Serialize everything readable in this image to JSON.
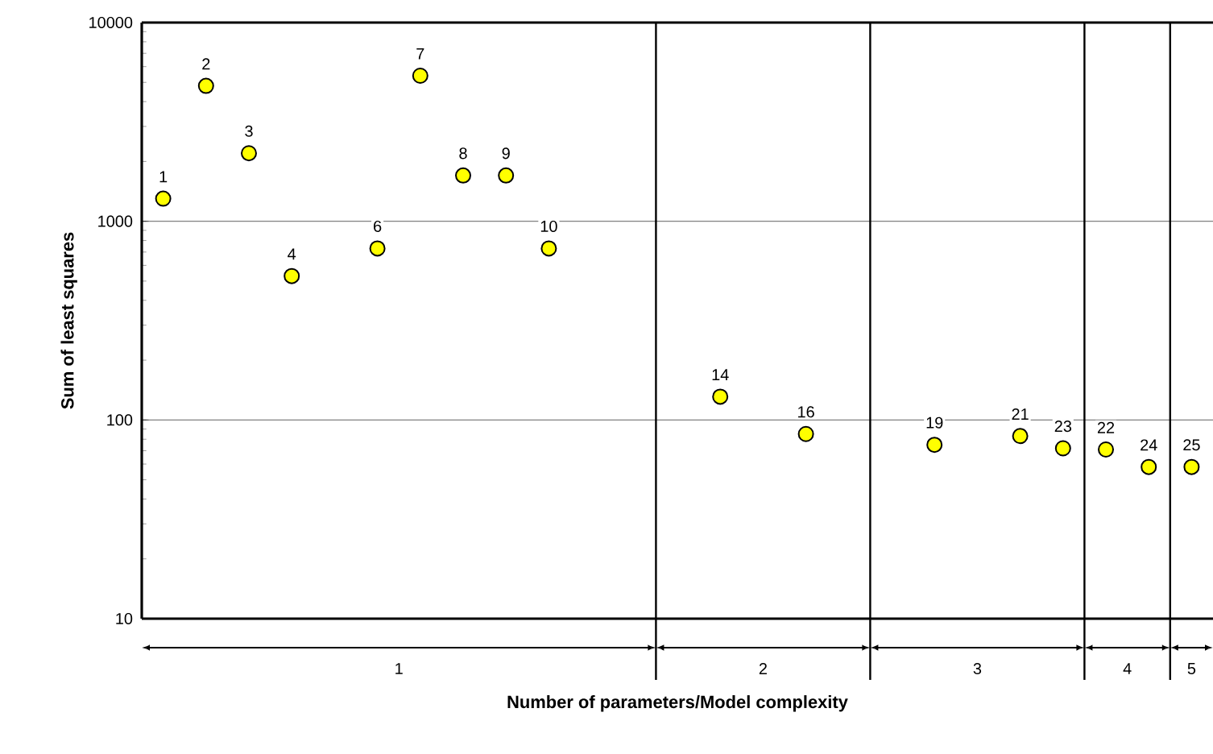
{
  "chart_data": {
    "type": "scatter",
    "xlabel": "Number of parameters/Model complexity",
    "ylabel": "Sum of least squares",
    "categories": [
      null,
      null,
      null,
      null,
      null,
      null,
      null,
      null,
      null,
      null,
      null,
      null,
      null,
      null,
      null,
      null,
      null,
      null,
      null,
      null,
      null,
      null,
      null,
      null,
      null
    ],
    "values": [
      1300,
      4800,
      2200,
      530,
      null,
      730,
      5400,
      1700,
      1700,
      730,
      null,
      null,
      null,
      131,
      null,
      85,
      null,
      null,
      75,
      null,
      83,
      72,
      71,
      58,
      58
    ],
    "color": "#ffff00",
    "log": "y",
    "grid": "y",
    "tick_labels": "y",
    "ylim": [
      10,
      10000
    ],
    "yticks": [
      10,
      100,
      1000,
      10000
    ],
    "annotations": [
      {
        "text": "1",
        "y": 1300
      },
      {
        "text": "2",
        "y": 4800
      },
      {
        "text": "3",
        "y": 2200
      },
      {
        "text": "4",
        "y": 530
      },
      {
        "text": "6",
        "y": 730
      },
      {
        "text": "7",
        "y": 5400
      },
      {
        "text": "8",
        "y": 1700
      },
      {
        "text": "9",
        "y": 1700
      },
      {
        "text": "10",
        "y": 730
      },
      {
        "text": "14",
        "y": 131
      },
      {
        "text": "16",
        "y": 85
      },
      {
        "text": "19",
        "y": 75
      },
      {
        "text": "21",
        "y": 83
      },
      {
        "text": "23",
        "y": 72
      },
      {
        "text": "22",
        "y": 71
      },
      {
        "text": "24",
        "y": 58
      },
      {
        "text": "25",
        "y": 58
      },
      "1",
      "2",
      "3",
      "4",
      "5"
    ]
  }
}
